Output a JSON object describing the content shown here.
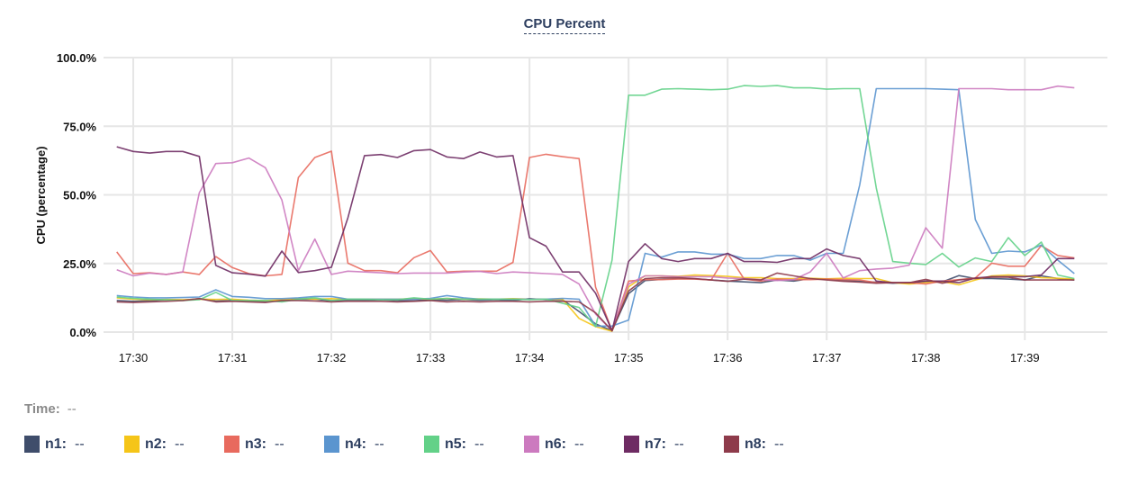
{
  "chart_data": {
    "type": "line",
    "title": "CPU Percent",
    "xlabel": "",
    "ylabel": "CPU (percentage)",
    "ylim": [
      0,
      100
    ],
    "xlim": [
      "17:29:42",
      "17:39:50"
    ],
    "grid": true,
    "y_ticks": [
      "0.0%",
      "25.0%",
      "50.0%",
      "75.0%",
      "100.0%"
    ],
    "x_ticks": [
      "17:30",
      "17:31",
      "17:32",
      "17:33",
      "17:34",
      "17:35",
      "17:36",
      "17:37",
      "17:38",
      "17:39"
    ],
    "x": [
      "17:29:50",
      "17:30:00",
      "17:30:10",
      "17:30:20",
      "17:30:30",
      "17:30:40",
      "17:30:50",
      "17:31:00",
      "17:31:10",
      "17:31:20",
      "17:31:30",
      "17:31:40",
      "17:31:50",
      "17:32:00",
      "17:32:10",
      "17:32:20",
      "17:32:30",
      "17:32:40",
      "17:32:50",
      "17:33:00",
      "17:33:10",
      "17:33:20",
      "17:33:30",
      "17:33:40",
      "17:33:50",
      "17:34:00",
      "17:34:10",
      "17:34:20",
      "17:34:30",
      "17:34:40",
      "17:34:50",
      "17:35:00",
      "17:35:10",
      "17:35:20",
      "17:35:30",
      "17:35:40",
      "17:35:50",
      "17:36:00",
      "17:36:10",
      "17:36:20",
      "17:36:30",
      "17:36:40",
      "17:36:50",
      "17:37:00",
      "17:37:10",
      "17:37:20",
      "17:37:30",
      "17:37:40",
      "17:37:50",
      "17:38:00",
      "17:38:10",
      "17:38:20",
      "17:38:30",
      "17:38:40",
      "17:38:50",
      "17:39:00",
      "17:39:10",
      "17:39:20",
      "17:39:30"
    ],
    "series": [
      {
        "name": "n1",
        "color": "#3f4d6b",
        "values": [
          11.5,
          11.2,
          11.4,
          11.8,
          11.6,
          12.2,
          11.3,
          11.5,
          11.2,
          11.0,
          11.5,
          12.0,
          12.0,
          11.4,
          11.7,
          11.6,
          11.8,
          11.5,
          11.4,
          11.8,
          11.6,
          11.9,
          11.6,
          11.8,
          11.5,
          12.2,
          11.8,
          11.8,
          7.5,
          3.0,
          0.5,
          14.0,
          18.8,
          19.2,
          19.5,
          19.4,
          19.0,
          18.6,
          18.3,
          18.0,
          19.0,
          18.6,
          19.5,
          19.3,
          18.8,
          18.5,
          18.2,
          17.8,
          18.0,
          18.5,
          18.3,
          20.6,
          19.5,
          19.5,
          19.3,
          19.0,
          20.5,
          19.5,
          19.0
        ]
      },
      {
        "name": "n2",
        "color": "#f5c518",
        "values": [
          12.5,
          12.0,
          11.8,
          11.9,
          11.8,
          12.0,
          11.9,
          12.0,
          11.6,
          11.5,
          11.8,
          12.3,
          12.0,
          12.2,
          12.0,
          12.0,
          12.0,
          12.0,
          12.2,
          12.0,
          12.3,
          12.0,
          12.1,
          12.0,
          12.2,
          12.0,
          12.0,
          12.0,
          5.0,
          2.0,
          0.3,
          16.5,
          20.5,
          20.5,
          20.3,
          20.8,
          20.6,
          20.3,
          19.8,
          19.8,
          19.5,
          19.5,
          19.6,
          19.4,
          19.6,
          19.5,
          19.5,
          18.0,
          17.5,
          18.0,
          18.4,
          17.2,
          19.0,
          20.5,
          20.8,
          20.5,
          19.8,
          19.6,
          19.3
        ]
      },
      {
        "name": "n3",
        "color": "#e86a5e",
        "values": [
          29.2,
          21.3,
          21.6,
          21.0,
          21.9,
          21.0,
          27.5,
          23.5,
          21.3,
          20.5,
          21.0,
          56.3,
          63.6,
          65.9,
          25.1,
          22.4,
          22.4,
          21.6,
          27.1,
          29.7,
          21.9,
          22.2,
          22.2,
          22.2,
          25.4,
          63.6,
          64.8,
          63.9,
          63.2,
          16.4,
          0.5,
          18.6,
          19.1,
          19.1,
          19.3,
          19.3,
          19.0,
          28.7,
          19.3,
          18.6,
          19.3,
          19.1,
          19.1,
          19.3,
          19.1,
          19.0,
          18.0,
          18.0,
          18.0,
          17.5,
          18.6,
          19.1,
          19.7,
          25.1,
          24.0,
          24.0,
          31.5,
          27.9,
          27.0
        ]
      },
      {
        "name": "n4",
        "color": "#5b95cf",
        "values": [
          13.3,
          12.8,
          12.5,
          12.5,
          12.6,
          12.8,
          15.4,
          13.0,
          12.7,
          12.2,
          12.2,
          12.5,
          13.0,
          13.0,
          12.0,
          12.0,
          12.0,
          12.0,
          12.0,
          12.3,
          13.3,
          12.5,
          12.0,
          12.0,
          12.0,
          12.0,
          12.0,
          12.3,
          12.0,
          2.2,
          2.2,
          4.4,
          28.7,
          27.3,
          29.2,
          29.2,
          28.4,
          28.4,
          26.8,
          26.8,
          27.9,
          27.9,
          26.2,
          28.7,
          28.7,
          53.6,
          88.7,
          88.7,
          88.7,
          88.7,
          88.5,
          88.3,
          41.0,
          28.7,
          29.5,
          29.2,
          31.7,
          26.2,
          21.3
        ]
      },
      {
        "name": "n5",
        "color": "#63d188",
        "values": [
          12.8,
          12.3,
          12.0,
          11.8,
          11.5,
          11.8,
          14.5,
          11.5,
          11.5,
          11.5,
          11.0,
          12.0,
          12.5,
          11.5,
          12.0,
          12.0,
          11.8,
          11.8,
          12.5,
          12.0,
          12.3,
          12.0,
          12.0,
          12.0,
          12.0,
          11.8,
          12.0,
          10.5,
          9.0,
          2.0,
          26.2,
          86.3,
          86.3,
          88.5,
          88.7,
          88.5,
          88.3,
          88.5,
          89.8,
          89.5,
          89.8,
          89.0,
          89.0,
          88.5,
          88.7,
          88.7,
          52.5,
          25.7,
          25.1,
          24.6,
          28.7,
          23.7,
          27.0,
          25.7,
          34.4,
          27.9,
          32.8,
          20.8,
          19.5
        ]
      },
      {
        "name": "n6",
        "color": "#cc7abf",
        "values": [
          22.7,
          20.5,
          21.5,
          21.0,
          21.9,
          50.8,
          61.4,
          61.7,
          63.4,
          59.9,
          48.1,
          22.4,
          33.9,
          21.0,
          22.2,
          21.9,
          21.6,
          21.3,
          21.5,
          21.5,
          21.5,
          21.9,
          22.1,
          21.3,
          21.9,
          21.6,
          21.3,
          21.0,
          17.5,
          6.6,
          0.5,
          17.5,
          20.5,
          20.5,
          20.2,
          20.2,
          20.2,
          19.7,
          19.5,
          19.1,
          18.8,
          19.1,
          21.9,
          28.7,
          19.7,
          22.4,
          23.0,
          23.3,
          24.4,
          38.0,
          30.6,
          88.7,
          88.7,
          88.7,
          88.3,
          88.3,
          88.3,
          89.6,
          89.0
        ]
      },
      {
        "name": "n7",
        "color": "#6e2b63",
        "values": [
          67.5,
          65.8,
          65.2,
          65.8,
          65.8,
          64.0,
          24.3,
          21.6,
          21.1,
          20.4,
          29.5,
          21.7,
          22.4,
          23.6,
          41.6,
          64.3,
          64.7,
          63.6,
          66.1,
          66.5,
          63.8,
          63.2,
          65.6,
          63.8,
          64.3,
          34.4,
          31.3,
          21.9,
          21.9,
          14.2,
          0.5,
          25.7,
          32.2,
          26.8,
          25.7,
          26.8,
          26.8,
          28.7,
          25.7,
          25.7,
          25.4,
          26.8,
          26.8,
          30.3,
          27.9,
          26.8,
          18.6,
          18.0,
          18.0,
          18.6,
          18.6,
          18.0,
          19.7,
          20.2,
          20.2,
          20.2,
          20.8,
          26.8,
          26.8
        ]
      },
      {
        "name": "n8",
        "color": "#8e3b4b",
        "values": [
          11.0,
          10.8,
          11.0,
          11.2,
          11.5,
          12.2,
          11.0,
          11.2,
          11.0,
          10.8,
          11.5,
          11.5,
          11.3,
          11.0,
          11.2,
          11.2,
          11.2,
          11.0,
          11.2,
          11.5,
          11.0,
          11.2,
          11.0,
          11.2,
          11.2,
          11.0,
          11.2,
          11.2,
          11.0,
          7.0,
          0.5,
          15.0,
          19.5,
          19.8,
          19.8,
          19.5,
          19.0,
          18.5,
          19.3,
          19.0,
          21.5,
          20.5,
          19.5,
          19.0,
          18.5,
          18.2,
          17.8,
          18.0,
          18.0,
          19.2,
          17.8,
          19.0,
          19.5,
          20.0,
          20.0,
          19.0,
          19.0,
          19.0,
          19.0
        ]
      }
    ]
  },
  "legend": {
    "time_label": "Time:",
    "time_value": "--",
    "items": [
      {
        "label": "n1:",
        "value": "--",
        "color": "#3f4d6b"
      },
      {
        "label": "n2:",
        "value": "--",
        "color": "#f5c518"
      },
      {
        "label": "n3:",
        "value": "--",
        "color": "#e86a5e"
      },
      {
        "label": "n4:",
        "value": "--",
        "color": "#5b95cf"
      },
      {
        "label": "n5:",
        "value": "--",
        "color": "#63d188"
      },
      {
        "label": "n6:",
        "value": "--",
        "color": "#cc7abf"
      },
      {
        "label": "n7:",
        "value": "--",
        "color": "#6e2b63"
      },
      {
        "label": "n8:",
        "value": "--",
        "color": "#8e3b4b"
      }
    ]
  }
}
